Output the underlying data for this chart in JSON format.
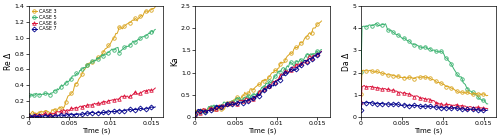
{
  "colors": {
    "case3": "#DAA520",
    "case5": "#3CB371",
    "case6": "#DC143C",
    "case7": "#00008B"
  },
  "markers": {
    "case3": "o",
    "case5": "o",
    "case6": "^",
    "case7": "D"
  },
  "legend_labels": [
    "CASE 3",
    "CASE 5",
    "CASE 6",
    "CASE 7"
  ],
  "xlim": [
    0,
    0.0165
  ],
  "xticks": [
    0,
    0.005,
    0.01,
    0.015
  ],
  "plot1_ylim": [
    0,
    1.4
  ],
  "plot1_yticks": [
    0,
    0.2,
    0.4,
    0.6,
    0.8,
    1.0,
    1.2,
    1.4
  ],
  "plot1_ylabel": "Re Δ",
  "plot2_ylim": [
    0,
    2.5
  ],
  "plot2_yticks": [
    0,
    0.5,
    1.0,
    1.5,
    2.0,
    2.5
  ],
  "plot2_ylabel": "Ka",
  "plot3_ylim": [
    0,
    5
  ],
  "plot3_yticks": [
    0,
    1,
    2,
    3,
    4,
    5
  ],
  "plot3_ylabel": "Da Δ",
  "xlabel": "Time (s)"
}
